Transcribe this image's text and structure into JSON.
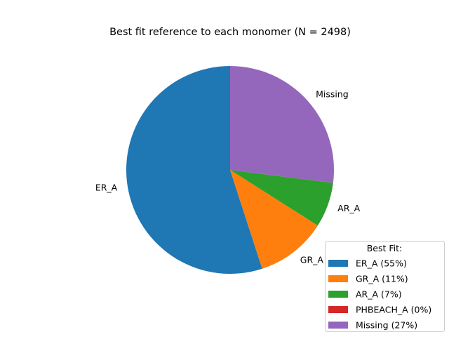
{
  "chart_data": {
    "type": "pie",
    "title": "Best fit reference to each monomer (N = 2498)",
    "slices": [
      {
        "label": "ER_A",
        "legend": "ER_A (55%)",
        "value": 55.0,
        "color": "#1f77b4"
      },
      {
        "label": "GR_A",
        "legend": "GR_A (11%)",
        "value": 11.0,
        "color": "#ff7f0e"
      },
      {
        "label": "AR_A",
        "legend": "AR_A (7%)",
        "value": 7.0,
        "color": "#2ca02c"
      },
      {
        "label": "PHBEACH_A",
        "legend": "PHBEACH_A (0%)",
        "value": 0.0,
        "color": "#d62728"
      },
      {
        "label": "Missing",
        "legend": "Missing (27%)",
        "value": 27.0,
        "color": "#9467bd"
      }
    ],
    "start_angle": 90,
    "direction": "counterclockwise",
    "legend": {
      "title": "Best Fit:",
      "position": "lower-right"
    }
  }
}
